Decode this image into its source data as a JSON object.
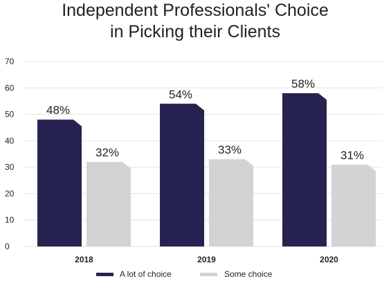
{
  "chart_data": {
    "type": "bar",
    "title_lines": [
      "Independent Professionals' Choice",
      "in Picking their Clients"
    ],
    "categories": [
      "2018",
      "2019",
      "2020"
    ],
    "series": [
      {
        "name": "A lot of choice",
        "values": [
          48,
          54,
          58
        ],
        "labels": [
          "48%",
          "54%",
          "58%"
        ],
        "color": "#272350"
      },
      {
        "name": "Some choice",
        "values": [
          32,
          33,
          31
        ],
        "labels": [
          "32%",
          "33%",
          "31%"
        ],
        "color": "#d3d3d5"
      }
    ],
    "yticks": [
      "0",
      "10",
      "20",
      "30",
      "40",
      "50",
      "60",
      "70"
    ],
    "ylim": [
      0,
      70
    ],
    "grid": true,
    "legend": "bottom-center"
  }
}
